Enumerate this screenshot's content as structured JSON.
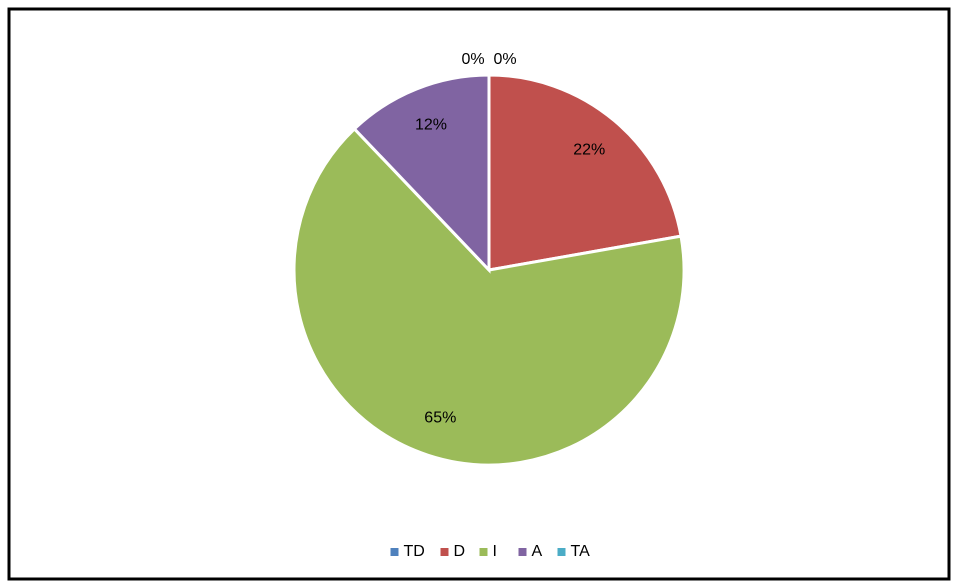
{
  "chart_data": {
    "type": "pie",
    "categories": [
      "TD",
      "D",
      "I",
      "A",
      "TA"
    ],
    "values": [
      0,
      22,
      65,
      12,
      0
    ],
    "value_labels": [
      "0%",
      "22%",
      "65%",
      "12%",
      "0%"
    ],
    "colors": [
      "#4f81bd",
      "#c0504d",
      "#9bbb59",
      "#8064a2",
      "#4bacc6"
    ],
    "legend": "bottom"
  }
}
